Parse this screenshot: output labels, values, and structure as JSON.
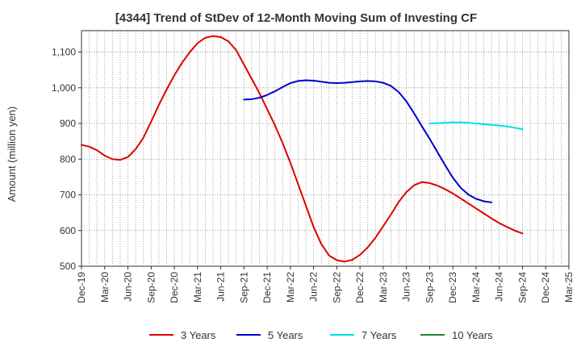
{
  "chart_data": {
    "type": "line",
    "title": "[4344]  Trend of StDev of 12-Month Moving Sum of Investing CF",
    "ylabel": "Amount (million yen)",
    "xlabel": "",
    "ylim": [
      500,
      1160
    ],
    "yticks": [
      500,
      600,
      700,
      800,
      900,
      1000,
      1100
    ],
    "ytick_labels": [
      "500",
      "600",
      "700",
      "800",
      "900",
      "1,000",
      "1,100"
    ],
    "x_start": "2019-12",
    "x_end": "2025-03",
    "xtick_labels": [
      "Dec-19",
      "Mar-20",
      "Jun-20",
      "Sep-20",
      "Dec-20",
      "Mar-21",
      "Jun-21",
      "Sep-21",
      "Dec-21",
      "Mar-22",
      "Jun-22",
      "Sep-22",
      "Dec-22",
      "Mar-23",
      "Jun-23",
      "Sep-23",
      "Dec-23",
      "Mar-24",
      "Jun-24",
      "Sep-24",
      "Dec-24",
      "Mar-25"
    ],
    "grid": true,
    "legend_position": "bottom",
    "series": [
      {
        "name": "3 Years",
        "color": "#dd0000",
        "points": [
          [
            "2019-12",
            840
          ],
          [
            "2020-01",
            835
          ],
          [
            "2020-02",
            825
          ],
          [
            "2020-03",
            810
          ],
          [
            "2020-04",
            800
          ],
          [
            "2020-05",
            798
          ],
          [
            "2020-06",
            806
          ],
          [
            "2020-07",
            828
          ],
          [
            "2020-08",
            860
          ],
          [
            "2020-09",
            905
          ],
          [
            "2020-10",
            952
          ],
          [
            "2020-11",
            995
          ],
          [
            "2020-12",
            1035
          ],
          [
            "2021-01",
            1070
          ],
          [
            "2021-02",
            1100
          ],
          [
            "2021-03",
            1125
          ],
          [
            "2021-04",
            1140
          ],
          [
            "2021-05",
            1145
          ],
          [
            "2021-06",
            1142
          ],
          [
            "2021-07",
            1130
          ],
          [
            "2021-08",
            1105
          ],
          [
            "2021-09",
            1065
          ],
          [
            "2021-10",
            1025
          ],
          [
            "2021-11",
            985
          ],
          [
            "2021-12",
            940
          ],
          [
            "2022-01",
            895
          ],
          [
            "2022-02",
            845
          ],
          [
            "2022-03",
            790
          ],
          [
            "2022-04",
            730
          ],
          [
            "2022-05",
            670
          ],
          [
            "2022-06",
            610
          ],
          [
            "2022-07",
            562
          ],
          [
            "2022-08",
            530
          ],
          [
            "2022-09",
            517
          ],
          [
            "2022-10",
            513
          ],
          [
            "2022-11",
            518
          ],
          [
            "2022-12",
            532
          ],
          [
            "2023-01",
            553
          ],
          [
            "2023-02",
            580
          ],
          [
            "2023-03",
            612
          ],
          [
            "2023-04",
            645
          ],
          [
            "2023-05",
            680
          ],
          [
            "2023-06",
            708
          ],
          [
            "2023-07",
            727
          ],
          [
            "2023-08",
            736
          ],
          [
            "2023-09",
            733
          ],
          [
            "2023-10",
            726
          ],
          [
            "2023-11",
            716
          ],
          [
            "2023-12",
            704
          ],
          [
            "2024-01",
            690
          ],
          [
            "2024-02",
            676
          ],
          [
            "2024-03",
            662
          ],
          [
            "2024-04",
            648
          ],
          [
            "2024-05",
            634
          ],
          [
            "2024-06",
            621
          ],
          [
            "2024-07",
            610
          ],
          [
            "2024-08",
            600
          ],
          [
            "2024-09",
            592
          ]
        ]
      },
      {
        "name": "5 Years",
        "color": "#0000cc",
        "points": [
          [
            "2021-09",
            967
          ],
          [
            "2021-10",
            968
          ],
          [
            "2021-11",
            972
          ],
          [
            "2021-12",
            980
          ],
          [
            "2022-01",
            990
          ],
          [
            "2022-02",
            1002
          ],
          [
            "2022-03",
            1013
          ],
          [
            "2022-04",
            1019
          ],
          [
            "2022-05",
            1021
          ],
          [
            "2022-06",
            1020
          ],
          [
            "2022-07",
            1017
          ],
          [
            "2022-08",
            1014
          ],
          [
            "2022-09",
            1013
          ],
          [
            "2022-10",
            1014
          ],
          [
            "2022-11",
            1016
          ],
          [
            "2022-12",
            1018
          ],
          [
            "2023-01",
            1019
          ],
          [
            "2023-02",
            1018
          ],
          [
            "2023-03",
            1014
          ],
          [
            "2023-04",
            1005
          ],
          [
            "2023-05",
            988
          ],
          [
            "2023-06",
            962
          ],
          [
            "2023-07",
            928
          ],
          [
            "2023-08",
            892
          ],
          [
            "2023-09",
            857
          ],
          [
            "2023-10",
            820
          ],
          [
            "2023-11",
            783
          ],
          [
            "2023-12",
            748
          ],
          [
            "2024-01",
            720
          ],
          [
            "2024-02",
            701
          ],
          [
            "2024-03",
            689
          ],
          [
            "2024-04",
            682
          ],
          [
            "2024-05",
            679
          ]
        ]
      },
      {
        "name": "7 Years",
        "color": "#00e0e0",
        "points": [
          [
            "2023-09",
            900
          ],
          [
            "2023-10",
            901
          ],
          [
            "2023-11",
            902
          ],
          [
            "2023-12",
            903
          ],
          [
            "2024-01",
            903
          ],
          [
            "2024-02",
            902
          ],
          [
            "2024-03",
            900
          ],
          [
            "2024-04",
            898
          ],
          [
            "2024-05",
            896
          ],
          [
            "2024-06",
            894
          ],
          [
            "2024-07",
            892
          ],
          [
            "2024-08",
            888
          ],
          [
            "2024-09",
            884
          ]
        ]
      },
      {
        "name": "10 Years",
        "color": "#228822",
        "points": []
      }
    ]
  }
}
